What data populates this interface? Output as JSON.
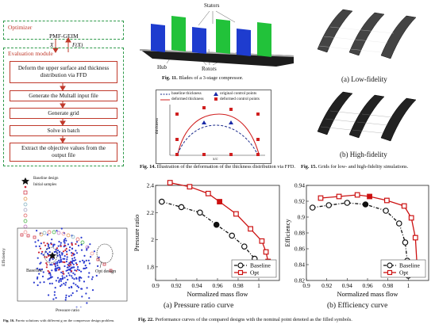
{
  "flowchart": {
    "optimizer_label": "Optimizer",
    "engine_label": "PMF-GEIM",
    "x_label": "X",
    "fx_label": "F(X)",
    "module_label": "Evaluation module",
    "steps": [
      "Deform the upper surface and thickness distribution via FFD",
      "Generate the Multall input file",
      "Generate grid",
      "Solve in batch",
      "Extract the objective values from the output file"
    ]
  },
  "fig11": {
    "stators_label": "Stators",
    "hub_label": "Hub",
    "rotors_label": "Rotors",
    "caption_num": "Fig. 11.",
    "caption_text": "Blades of a 3-stage compressor.",
    "colors": {
      "rotor": "#1e3ccf",
      "stator": "#22c23a",
      "hub": "#222222"
    }
  },
  "fig15": {
    "sub_a": "(a) Low-fidelity",
    "sub_b": "(b) High-fidelity",
    "caption_num": "Fig. 15.",
    "caption_text": "Grids for low- and high-fidelity simulations."
  },
  "fig14": {
    "legend": [
      "baseline thickness",
      "deformed thickness",
      "original control points",
      "deformed control points"
    ],
    "ylabel": "thickness",
    "xlabel": "x/c",
    "caption_num": "Fig. 14.",
    "caption_text": "Illustration of the deformation of the thickness distribution via FFD.",
    "colors": {
      "baseline": "#1a2a8a",
      "deformed": "#d02020",
      "original_pt": "#1a2aa8",
      "deformed_pt": "#d02020"
    }
  },
  "fig16": {
    "legend_readable": [
      "Baseline design",
      "Initial samples"
    ],
    "baseline_label": "Baseline",
    "opt_label": "Opt design",
    "ylabel": "Efficiency",
    "xlabel": "Pressure ratio",
    "caption_num": "Fig. 16.",
    "caption_text": "Pareto solutions with different g on the compressor design problem."
  },
  "fig22": {
    "caption_num": "Fig. 22.",
    "caption_text": "Performance curves of the compared designs with the nominal point denoted as the filled symbols.",
    "sub_a": "(a) Pressure ratio curve",
    "sub_b": "(b) Efficiency curve",
    "legend_baseline": "Baseline",
    "legend_opt": "Opt"
  },
  "chart_data": [
    {
      "type": "line",
      "title": "(a) Pressure ratio curve",
      "xlabel": "Normalized mass flow",
      "ylabel": "Pressure ratio",
      "xlim": [
        0.9,
        1.02
      ],
      "ylim": [
        1.7,
        2.4
      ],
      "xticks": [
        0.9,
        0.92,
        0.94,
        0.96,
        0.98,
        1
      ],
      "yticks": [
        1.8,
        2.0,
        2.2,
        2.4
      ],
      "xtick_labels": [
        "0.9",
        "0.92",
        "0.94",
        "0.96",
        "0.98",
        "1"
      ],
      "ytick_labels": [
        "1.8",
        "2",
        "2.2",
        "2.4"
      ],
      "legend": "bottom-right",
      "series": [
        {
          "name": "Baseline",
          "color": "#111111",
          "marker": "circle",
          "dashed": true,
          "nominal_index": 3,
          "x": [
            0.906,
            0.925,
            0.943,
            0.959,
            0.974,
            0.986,
            0.996,
            0.999,
            1.0
          ],
          "y": [
            2.28,
            2.24,
            2.2,
            2.11,
            2.03,
            1.95,
            1.86,
            1.81,
            1.76
          ]
        },
        {
          "name": "Opt",
          "color": "#cc1111",
          "marker": "square",
          "dashed": false,
          "nominal_index": 3,
          "x": [
            0.914,
            0.933,
            0.951,
            0.962,
            0.978,
            0.992,
            1.003,
            1.007,
            1.009
          ],
          "y": [
            2.42,
            2.39,
            2.34,
            2.28,
            2.19,
            2.08,
            1.99,
            1.91,
            1.84
          ]
        }
      ]
    },
    {
      "type": "line",
      "title": "(b) Efficiency curve",
      "xlabel": "Normalized mass flow",
      "ylabel": "Efficiency",
      "xlim": [
        0.9,
        1.02
      ],
      "ylim": [
        0.82,
        0.94
      ],
      "xticks": [
        0.9,
        0.92,
        0.94,
        0.96,
        0.98,
        1
      ],
      "yticks": [
        0.82,
        0.84,
        0.86,
        0.88,
        0.9,
        0.92,
        0.94
      ],
      "xtick_labels": [
        "0.9",
        "0.92",
        "0.94",
        "0.96",
        "0.98",
        "1"
      ],
      "ytick_labels": [
        "0.82",
        "0.84",
        "0.86",
        "0.88",
        "0.9",
        "0.92",
        "0.94"
      ],
      "legend": "bottom-right",
      "series": [
        {
          "name": "Baseline",
          "color": "#111111",
          "marker": "circle",
          "dashed": true,
          "nominal_index": 3,
          "x": [
            0.906,
            0.922,
            0.94,
            0.958,
            0.978,
            0.991,
            0.997,
            0.999,
            1.0
          ],
          "y": [
            0.912,
            0.915,
            0.918,
            0.916,
            0.908,
            0.892,
            0.868,
            0.845,
            0.826
          ]
        },
        {
          "name": "Opt",
          "color": "#cc1111",
          "marker": "square",
          "dashed": false,
          "nominal_index": 3,
          "x": [
            0.914,
            0.932,
            0.95,
            0.962,
            0.979,
            0.996,
            1.003,
            1.007,
            1.009
          ],
          "y": [
            0.924,
            0.926,
            0.928,
            0.926,
            0.921,
            0.914,
            0.899,
            0.874,
            0.83
          ]
        }
      ]
    }
  ]
}
